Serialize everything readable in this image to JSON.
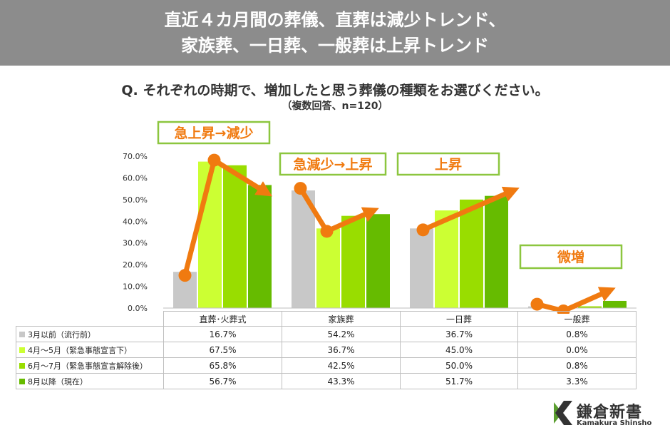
{
  "header": {
    "title_line1": "直近４カ月間の葬儀、直葬は減少トレンド、",
    "title_line2": "家族葬、一日葬、一般葬は上昇トレンド"
  },
  "question": "Q. それぞれの時期で、増加したと思う葬儀の種類をお選びください。",
  "sub": "（複数回答、n=120）",
  "annotations": [
    "急上昇→減少",
    "急減少→上昇",
    "上昇",
    "微増"
  ],
  "colors": {
    "series": [
      "#c8c8c8",
      "#ccff33",
      "#99dd00",
      "#66bb00"
    ],
    "arrow": "#f07a10",
    "annotation_border": "#8cc63f",
    "banner": "#8c8c8c"
  },
  "chart_data": {
    "type": "bar",
    "categories": [
      "直葬･火葬式",
      "家族葬",
      "一日葬",
      "一般葬"
    ],
    "series": [
      {
        "name": "3月以前（流行前）",
        "values": [
          16.7,
          54.2,
          36.7,
          0.8
        ],
        "labels": [
          "16.7%",
          "54.2%",
          "36.7%",
          "0.8%"
        ]
      },
      {
        "name": "4月～5月（緊急事態宣言下）",
        "values": [
          67.5,
          36.7,
          45.0,
          0.0
        ],
        "labels": [
          "67.5%",
          "36.7%",
          "45.0%",
          "0.0%"
        ]
      },
      {
        "name": "6月～7月（緊急事態宣言解除後）",
        "values": [
          65.8,
          42.5,
          50.0,
          0.8
        ],
        "labels": [
          "65.8%",
          "42.5%",
          "50.0%",
          "0.8%"
        ]
      },
      {
        "name": "8月以降（現在）",
        "values": [
          56.7,
          43.3,
          51.7,
          3.3
        ],
        "labels": [
          "56.7%",
          "43.3%",
          "51.7%",
          "3.3%"
        ]
      }
    ],
    "yticks": [
      "0.0%",
      "10.0%",
      "20.0%",
      "30.0%",
      "40.0%",
      "50.0%",
      "60.0%",
      "70.0%"
    ],
    "ylim": [
      0,
      70
    ],
    "legend": "table-rows"
  },
  "logo": {
    "name": "鎌倉新書",
    "sub": "Kamakura Shinsho"
  }
}
